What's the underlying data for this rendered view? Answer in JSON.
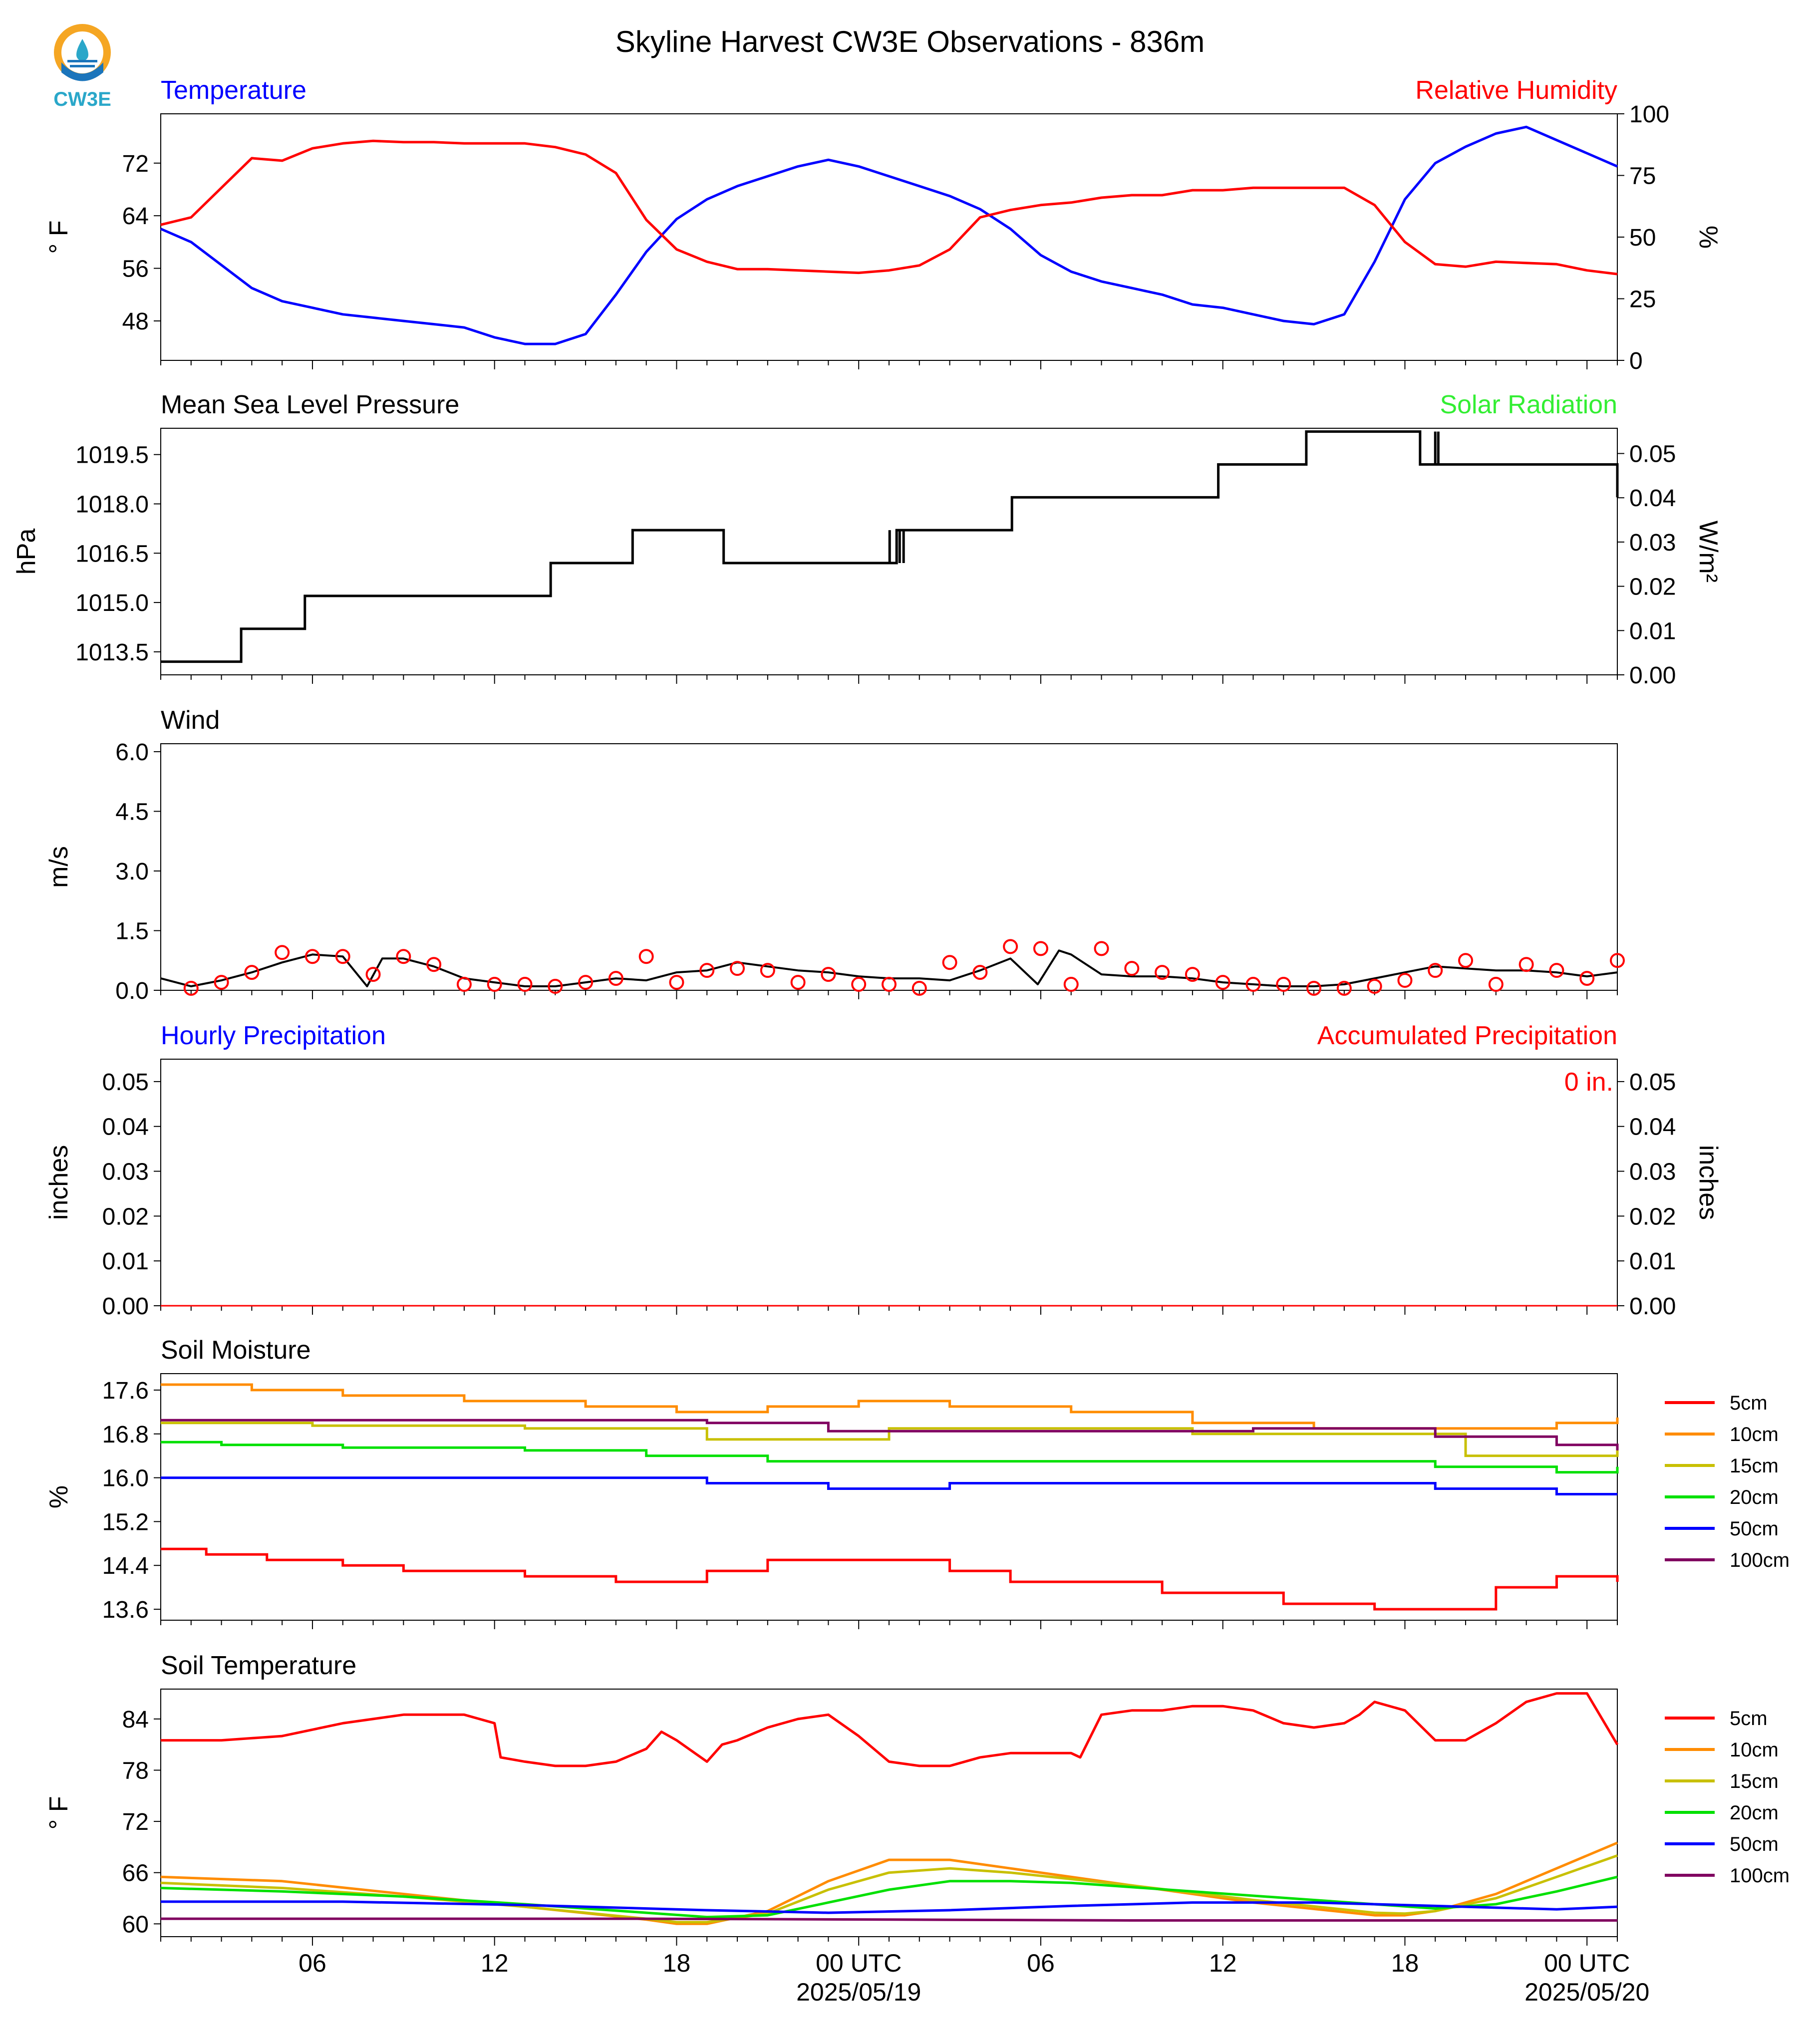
{
  "logo": {
    "text": "CW3E",
    "colors": {
      "orange": "#f5a623",
      "blue": "#1b75bb",
      "teal": "#2aa7c9"
    }
  },
  "title": "Skyline Harvest CW3E Observations - 836m",
  "x_axis": {
    "tick_labels": [
      "06",
      "12",
      "18",
      "00 UTC",
      "06",
      "12",
      "18",
      "00 UTC"
    ],
    "date_labels": [
      "2025/05/19",
      "2025/05/20"
    ],
    "start": "2025-05-18T01:00Z",
    "end": "2025-05-20T01:00Z"
  },
  "chart_data": [
    {
      "id": "temp_rh",
      "type": "line",
      "left_title": "Temperature",
      "right_title": "Relative Humidity",
      "ylabel": "° F",
      "ylabel2": "%",
      "ylim": [
        42,
        79.5
      ],
      "ylim2": [
        0,
        100
      ],
      "yticks": [
        "48",
        "56",
        "64",
        "72"
      ],
      "yticks2": [
        "0",
        "25",
        "50",
        "75",
        "100"
      ],
      "colors": {
        "left_title": "#0000ff",
        "right_title": "#ff0000"
      },
      "x_hours": [
        0,
        1,
        2,
        3,
        4,
        5,
        6,
        7,
        8,
        9,
        10,
        11,
        12,
        13,
        14,
        15,
        16,
        17,
        18,
        19,
        20,
        21,
        22,
        23,
        24,
        25,
        26,
        27,
        28,
        29,
        30,
        31,
        32,
        33,
        34,
        35,
        36,
        37,
        38,
        39,
        40,
        41,
        42,
        43,
        44,
        45,
        46,
        47,
        48
      ],
      "series": [
        {
          "axis": "left",
          "color": "#0000ff",
          "values": [
            62,
            60,
            56.5,
            53,
            51,
            50,
            49,
            48.5,
            48,
            47.5,
            47,
            45.5,
            44.5,
            44.5,
            46,
            52,
            58.5,
            63.5,
            66.5,
            68.5,
            70,
            71.5,
            72.5,
            71.5,
            70,
            68.5,
            67,
            65,
            62,
            58,
            55.5,
            54,
            53,
            52,
            50.5,
            50,
            49,
            48,
            47.5,
            49,
            57,
            66.5,
            72,
            74.5,
            76.5,
            77.5,
            75.5,
            73.5,
            71.5
          ]
        },
        {
          "axis": "right",
          "color": "#ff0000",
          "values": [
            55,
            58,
            70,
            82,
            81,
            86,
            88,
            89,
            88.5,
            88.5,
            88,
            88,
            88,
            86.5,
            83.5,
            76,
            57,
            45,
            40,
            37,
            37,
            36.5,
            36,
            35.5,
            36.5,
            38.5,
            45,
            58,
            61,
            63,
            64,
            66,
            67,
            67,
            69,
            69,
            70,
            70,
            70,
            70,
            63,
            48,
            39,
            38,
            40,
            39.5,
            39,
            36.5,
            35
          ]
        }
      ]
    },
    {
      "id": "pressure",
      "type": "line",
      "left_title": "Mean Sea Level Pressure",
      "right_title": "Solar Radiation",
      "ylabel": "hPa",
      "ylabel2": "W/m²",
      "ylim": [
        1012.8,
        1020.3
      ],
      "ylim2": [
        0,
        0.0557
      ],
      "yticks": [
        "1013.5",
        "1015.0",
        "1016.5",
        "1018.0",
        "1019.5"
      ],
      "yticks2": [
        "0.00",
        "0.01",
        "0.02",
        "0.03",
        "0.04",
        "0.05"
      ],
      "colors": {
        "left_title": "#000000",
        "right_title": "#33ee33"
      },
      "step_x": [
        0,
        2.65,
        4.75,
        12.85,
        15.55,
        18.55,
        24.25,
        28.05,
        34.85,
        37.75,
        41.5,
        48
      ],
      "step_y": [
        1013.2,
        1014.2,
        1015.2,
        1016.2,
        1017.2,
        1016.2,
        1017.2,
        1018.2,
        1019.2,
        1020.2,
        1019.2,
        1018.2
      ],
      "spike_x": [
        4.67,
        24.02,
        24.12,
        24.35,
        24.48,
        39.95,
        42.0,
        42.1,
        42.22
      ],
      "spike_to": [
        1014.2,
        1017.2,
        1016.2,
        1016.2,
        1016.2,
        1020.2,
        1020.2,
        1020.2,
        1019.2
      ]
    },
    {
      "id": "wind",
      "type": "line",
      "left_title": "Wind",
      "ylabel": "m/s",
      "ylim": [
        0,
        6.2
      ],
      "yticks": [
        "0.0",
        "1.5",
        "3.0",
        "4.5",
        "6.0"
      ],
      "colors": {
        "left_title": "#000000",
        "line": "#000000",
        "gust": "#ff0000"
      },
      "x_hours": [
        0,
        1,
        2,
        3,
        4,
        5,
        6,
        6.8,
        7.3,
        8,
        9,
        10,
        11,
        12,
        13,
        14,
        15,
        16,
        17,
        18,
        19,
        20,
        21,
        22,
        23,
        24,
        25,
        26,
        27,
        28,
        28.9,
        29.6,
        30,
        31,
        32,
        33,
        34,
        35,
        36,
        37,
        38,
        39,
        40,
        41,
        42,
        43,
        44,
        45,
        46,
        47,
        48
      ],
      "values": [
        0.3,
        0.1,
        0.25,
        0.45,
        0.7,
        0.9,
        0.85,
        0.1,
        0.8,
        0.8,
        0.6,
        0.3,
        0.2,
        0.1,
        0.1,
        0.2,
        0.3,
        0.25,
        0.45,
        0.5,
        0.7,
        0.6,
        0.5,
        0.45,
        0.35,
        0.3,
        0.3,
        0.25,
        0.5,
        0.8,
        0.15,
        1.0,
        0.9,
        0.4,
        0.35,
        0.35,
        0.3,
        0.2,
        0.15,
        0.1,
        0.1,
        0.15,
        0.3,
        0.45,
        0.6,
        0.55,
        0.5,
        0.5,
        0.45,
        0.35,
        0.45
      ],
      "gusts_x": [
        1,
        2,
        3,
        4,
        5,
        6,
        7,
        8,
        9,
        10,
        11,
        12,
        13,
        14,
        15,
        16,
        17,
        18,
        19,
        20,
        21,
        22,
        23,
        24,
        25,
        26,
        27,
        28,
        29,
        30,
        31,
        32,
        33,
        34,
        35,
        36,
        37,
        38,
        39,
        40,
        41,
        42,
        43,
        44,
        45,
        46,
        47,
        48
      ],
      "gusts_y": [
        0.05,
        0.2,
        0.45,
        0.95,
        0.85,
        0.85,
        0.4,
        0.85,
        0.65,
        0.15,
        0.15,
        0.15,
        0.1,
        0.2,
        0.3,
        0.85,
        0.2,
        0.5,
        0.55,
        0.5,
        0.2,
        0.4,
        0.15,
        0.15,
        0.05,
        0.7,
        0.45,
        1.1,
        1.05,
        0.15,
        1.05,
        0.55,
        0.45,
        0.4,
        0.2,
        0.15,
        0.15,
        0.05,
        0.05,
        0.1,
        0.25,
        0.5,
        0.75,
        0.15,
        0.65,
        0.5,
        0.3,
        0.75
      ]
    },
    {
      "id": "precip",
      "type": "line",
      "left_title": "Hourly Precipitation",
      "right_title": "Accumulated Precipitation",
      "ylabel": "inches",
      "ylabel2": "inches",
      "ylim": [
        0,
        0.055
      ],
      "ylim2": [
        0,
        0.055
      ],
      "yticks": [
        "0.00",
        "0.01",
        "0.02",
        "0.03",
        "0.04",
        "0.05"
      ],
      "yticks2": [
        "0.00",
        "0.01",
        "0.02",
        "0.03",
        "0.04",
        "0.05"
      ],
      "colors": {
        "left_title": "#0000ff",
        "right_title": "#ff0000"
      },
      "annotation": "0 in.",
      "values_hourly": [
        0
      ],
      "values_accumulated": [
        0
      ]
    },
    {
      "id": "soil_moisture",
      "type": "line",
      "left_title": "Soil Moisture",
      "ylabel": "%",
      "ylim": [
        13.4,
        17.9
      ],
      "yticks": [
        "13.6",
        "14.4",
        "15.2",
        "16.0",
        "16.8",
        "17.6"
      ],
      "colors": {
        "left_title": "#000000"
      },
      "legend_labels": [
        "5cm",
        "10cm",
        "15cm",
        "20cm",
        "50cm",
        "100cm"
      ],
      "legend_position": "right",
      "series": [
        {
          "name": "5cm",
          "color": "#ff0000",
          "x": [
            0,
            1.5,
            3.5,
            6,
            8,
            12,
            15,
            18,
            20,
            24,
            26,
            28,
            33,
            37,
            40,
            44,
            46,
            48
          ],
          "y": [
            14.7,
            14.6,
            14.5,
            14.4,
            14.3,
            14.2,
            14.1,
            14.3,
            14.5,
            14.5,
            14.3,
            14.1,
            13.9,
            13.7,
            13.6,
            14.0,
            14.2,
            14.1
          ]
        },
        {
          "name": "10cm",
          "color": "#ff8c00",
          "x": [
            0,
            3,
            6,
            10,
            14,
            17,
            20,
            23,
            26,
            30,
            34,
            38,
            42,
            46,
            48
          ],
          "y": [
            17.7,
            17.6,
            17.5,
            17.4,
            17.3,
            17.2,
            17.3,
            17.4,
            17.3,
            17.2,
            17.0,
            16.9,
            16.9,
            17.0,
            17.1
          ]
        },
        {
          "name": "15cm",
          "color": "#c8c000",
          "x": [
            0,
            5,
            12,
            18,
            22,
            24,
            30,
            34,
            40,
            43,
            48
          ],
          "y": [
            17.0,
            16.95,
            16.9,
            16.7,
            16.7,
            16.9,
            16.9,
            16.8,
            16.8,
            16.4,
            16.5
          ]
        },
        {
          "name": "20cm",
          "color": "#00e000",
          "x": [
            0,
            2,
            6,
            12,
            16,
            20,
            24,
            30,
            36,
            42,
            46,
            48
          ],
          "y": [
            16.65,
            16.6,
            16.55,
            16.5,
            16.4,
            16.3,
            16.3,
            16.3,
            16.3,
            16.2,
            16.1,
            16.2
          ]
        },
        {
          "name": "50cm",
          "color": "#0000ff",
          "x": [
            0,
            6,
            13,
            18,
            22,
            26,
            30,
            36,
            42,
            46,
            48
          ],
          "y": [
            16.0,
            16.0,
            16.0,
            15.9,
            15.8,
            15.9,
            15.9,
            15.9,
            15.8,
            15.7,
            15.7
          ]
        },
        {
          "name": "100cm",
          "color": "#800060",
          "x": [
            0,
            6,
            12,
            18,
            22,
            26,
            30,
            36,
            42,
            46,
            48
          ],
          "y": [
            17.05,
            17.05,
            17.05,
            17.0,
            16.85,
            16.85,
            16.85,
            16.9,
            16.75,
            16.6,
            16.5
          ]
        }
      ]
    },
    {
      "id": "soil_temperature",
      "type": "line",
      "left_title": "Soil Temperature",
      "ylabel": "° F",
      "ylim": [
        58.5,
        87.5
      ],
      "yticks": [
        "60",
        "66",
        "72",
        "78",
        "84"
      ],
      "colors": {
        "left_title": "#000000"
      },
      "legend_labels": [
        "5cm",
        "10cm",
        "15cm",
        "20cm",
        "50cm",
        "100cm"
      ],
      "legend_position": "right",
      "series": [
        {
          "name": "5cm",
          "color": "#ff0000",
          "x": [
            0,
            2,
            4,
            6,
            8,
            10,
            11,
            11.2,
            12,
            13,
            14,
            15,
            16,
            16.5,
            17,
            18,
            18.5,
            19,
            20,
            21,
            22,
            23,
            24,
            25,
            26,
            27,
            28,
            29,
            30,
            30.3,
            31,
            32,
            33,
            34,
            35,
            36,
            37,
            38,
            39,
            39.5,
            40,
            41,
            42,
            43,
            44,
            45,
            46,
            47,
            48
          ],
          "y": [
            81.5,
            81.5,
            82,
            83.5,
            84.5,
            84.5,
            83.5,
            79.5,
            79,
            78.5,
            78.5,
            79,
            80.5,
            82.5,
            81.5,
            79,
            81,
            81.5,
            83,
            84,
            84.5,
            82,
            79,
            78.5,
            78.5,
            79.5,
            80,
            80,
            80,
            79.5,
            84.5,
            85,
            85,
            85.5,
            85.5,
            85,
            83.5,
            83,
            83.5,
            84.5,
            86,
            85,
            81.5,
            81.5,
            83.5,
            86,
            87,
            87,
            81
          ]
        },
        {
          "name": "10cm",
          "color": "#ff8c00",
          "x": [
            0,
            4,
            8,
            12,
            16,
            17,
            18,
            20,
            22,
            24,
            26,
            28,
            32,
            36,
            40,
            41,
            42,
            44,
            46,
            48
          ],
          "y": [
            65.5,
            65,
            63.5,
            62,
            60.5,
            60,
            60,
            61.5,
            65,
            67.5,
            67.5,
            66.5,
            64.5,
            62.5,
            61,
            61,
            61.5,
            63.5,
            66.5,
            69.5
          ]
        },
        {
          "name": "15cm",
          "color": "#c8c000",
          "x": [
            0,
            4,
            8,
            12,
            16,
            17,
            18,
            20,
            22,
            24,
            26,
            28,
            32,
            36,
            40,
            41,
            42,
            44,
            46,
            48
          ],
          "y": [
            64.8,
            64.2,
            63.2,
            62,
            60.6,
            60.2,
            60.2,
            61.2,
            64,
            66,
            66.5,
            66,
            64.5,
            62.8,
            61.3,
            61.2,
            61.5,
            63,
            65.5,
            68
          ]
        },
        {
          "name": "20cm",
          "color": "#00e000",
          "x": [
            0,
            4,
            8,
            12,
            16,
            18,
            20,
            22,
            24,
            26,
            28,
            30,
            34,
            38,
            42,
            44,
            46,
            48
          ],
          "y": [
            64.2,
            63.8,
            63.2,
            62.3,
            61.3,
            60.8,
            61,
            62.5,
            64,
            65,
            65,
            64.8,
            63.8,
            62.8,
            61.8,
            62.3,
            63.8,
            65.5
          ]
        },
        {
          "name": "50cm",
          "color": "#0000ff",
          "x": [
            0,
            6,
            12,
            18,
            22,
            26,
            30,
            34,
            38,
            42,
            46,
            48
          ],
          "y": [
            62.6,
            62.6,
            62.2,
            61.6,
            61.3,
            61.6,
            62.1,
            62.5,
            62.5,
            62.1,
            61.7,
            62
          ]
        },
        {
          "name": "100cm",
          "color": "#800060",
          "x": [
            0,
            8,
            16,
            24,
            32,
            40,
            48
          ],
          "y": [
            60.6,
            60.6,
            60.6,
            60.5,
            60.4,
            60.4,
            60.4
          ]
        }
      ]
    }
  ]
}
